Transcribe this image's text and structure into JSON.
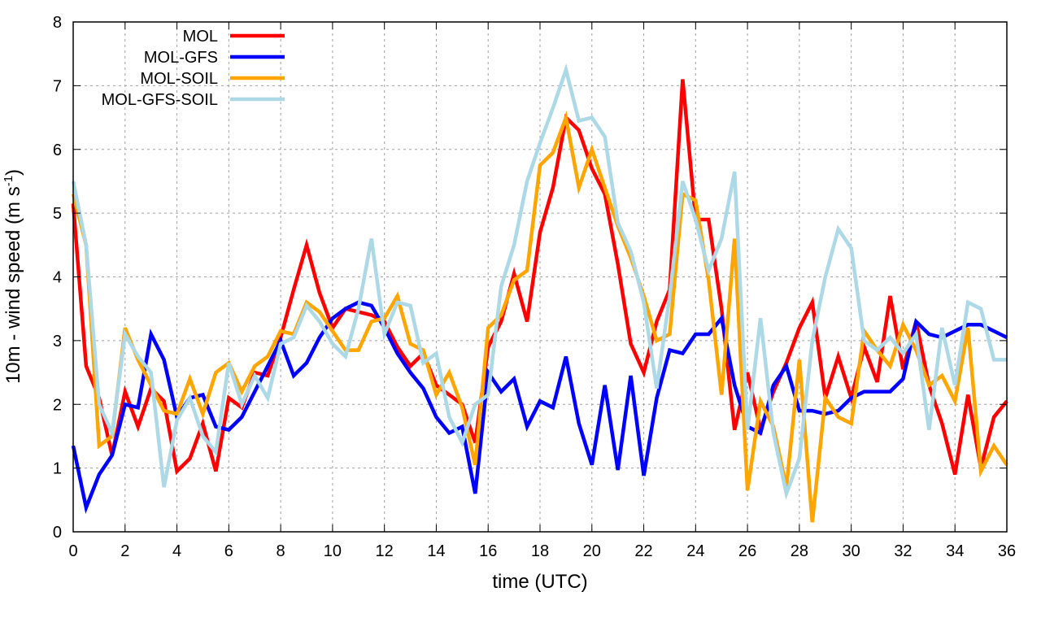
{
  "chart_data": {
    "type": "line",
    "title": "",
    "xlabel": "time (UTC)",
    "ylabel": {
      "main": "10m - wind speed  (m s",
      "sup": "-1",
      "close": ")"
    },
    "xlim": [
      0,
      36
    ],
    "ylim": [
      0,
      8
    ],
    "xticks": [
      0,
      2,
      4,
      6,
      8,
      10,
      12,
      14,
      16,
      18,
      20,
      22,
      24,
      26,
      28,
      30,
      32,
      34,
      36
    ],
    "yticks": [
      0,
      1,
      2,
      3,
      4,
      5,
      6,
      7,
      8
    ],
    "grid": true,
    "legend_position": "top-left",
    "x_step": 0.5,
    "series": [
      {
        "name": "MOL",
        "color": "#ff0000",
        "values": [
          5.15,
          2.6,
          2.1,
          1.2,
          2.2,
          1.65,
          2.25,
          2.05,
          0.95,
          1.15,
          1.7,
          0.95,
          2.1,
          1.95,
          2.5,
          2.45,
          3.05,
          3.8,
          4.5,
          3.75,
          3.2,
          3.5,
          3.45,
          3.4,
          3.3,
          2.9,
          2.6,
          2.8,
          2.3,
          2.15,
          2.0,
          1.4,
          2.9,
          3.3,
          4.05,
          3.3,
          4.7,
          5.4,
          6.5,
          6.3,
          5.7,
          5.3,
          4.2,
          2.95,
          2.5,
          3.3,
          3.8,
          7.1,
          4.9,
          4.9,
          3.5,
          1.6,
          2.5,
          1.6,
          2.2,
          2.65,
          3.2,
          3.6,
          2.1,
          2.75,
          2.1,
          2.9,
          2.35,
          3.7,
          2.55,
          3.3,
          2.3,
          1.7,
          0.9,
          2.15,
          1.0,
          1.8,
          2.05
        ]
      },
      {
        "name": "MOL-GFS",
        "color": "#0000ff",
        "values": [
          1.35,
          0.38,
          0.9,
          1.2,
          2.0,
          1.95,
          3.1,
          2.7,
          1.8,
          2.1,
          2.15,
          1.65,
          1.6,
          1.8,
          2.2,
          2.6,
          3.0,
          2.45,
          2.65,
          3.05,
          3.35,
          3.5,
          3.6,
          3.55,
          3.2,
          2.8,
          2.5,
          2.25,
          1.8,
          1.55,
          1.65,
          0.6,
          2.5,
          2.2,
          2.4,
          1.65,
          2.05,
          1.95,
          2.75,
          1.7,
          1.05,
          2.3,
          0.97,
          2.45,
          0.88,
          2.1,
          2.85,
          2.8,
          3.1,
          3.1,
          3.35,
          2.3,
          1.65,
          1.55,
          2.3,
          2.6,
          1.9,
          1.9,
          1.85,
          1.9,
          2.1,
          2.2,
          2.2,
          2.2,
          2.4,
          3.3,
          3.1,
          3.05,
          3.15,
          3.25,
          3.25,
          3.15,
          3.05
        ]
      },
      {
        "name": "MOL-SOIL",
        "color": "#ffa500",
        "values": [
          5.3,
          4.5,
          1.35,
          1.5,
          3.2,
          2.7,
          2.3,
          1.9,
          1.85,
          2.4,
          1.85,
          2.5,
          2.65,
          2.2,
          2.6,
          2.75,
          3.15,
          3.1,
          3.6,
          3.45,
          3.15,
          2.85,
          2.85,
          3.3,
          3.35,
          3.7,
          2.95,
          2.85,
          2.15,
          2.5,
          1.95,
          1.05,
          3.2,
          3.4,
          3.95,
          4.1,
          5.75,
          5.95,
          6.5,
          5.4,
          6.0,
          5.4,
          4.8,
          4.3,
          3.7,
          3.0,
          3.1,
          5.3,
          5.2,
          3.95,
          2.15,
          4.6,
          0.65,
          2.05,
          1.65,
          0.7,
          2.7,
          0.15,
          2.1,
          1.8,
          1.7,
          3.15,
          2.85,
          2.6,
          3.25,
          2.85,
          2.3,
          2.45,
          2.05,
          3.2,
          0.95,
          1.35,
          1.05
        ]
      },
      {
        "name": "MOL-GFS-SOIL",
        "color": "#add8e6",
        "values": [
          5.5,
          4.5,
          2.0,
          1.55,
          3.1,
          2.75,
          2.5,
          0.7,
          1.75,
          2.1,
          1.5,
          1.25,
          2.65,
          2.0,
          2.45,
          2.1,
          2.95,
          3.05,
          3.55,
          3.3,
          2.95,
          2.75,
          3.5,
          4.6,
          3.1,
          3.6,
          3.55,
          2.65,
          2.8,
          1.8,
          1.4,
          2.0,
          2.15,
          3.85,
          4.5,
          5.5,
          6.1,
          6.65,
          7.25,
          6.45,
          6.5,
          6.2,
          4.85,
          4.4,
          3.6,
          2.25,
          3.7,
          5.5,
          4.9,
          4.1,
          4.6,
          5.65,
          1.6,
          3.35,
          1.55,
          0.6,
          1.15,
          3.0,
          4.0,
          4.75,
          4.45,
          3.0,
          2.85,
          3.05,
          2.8,
          3.1,
          1.6,
          3.2,
          2.3,
          3.6,
          3.5,
          2.7,
          2.7
        ]
      }
    ]
  }
}
